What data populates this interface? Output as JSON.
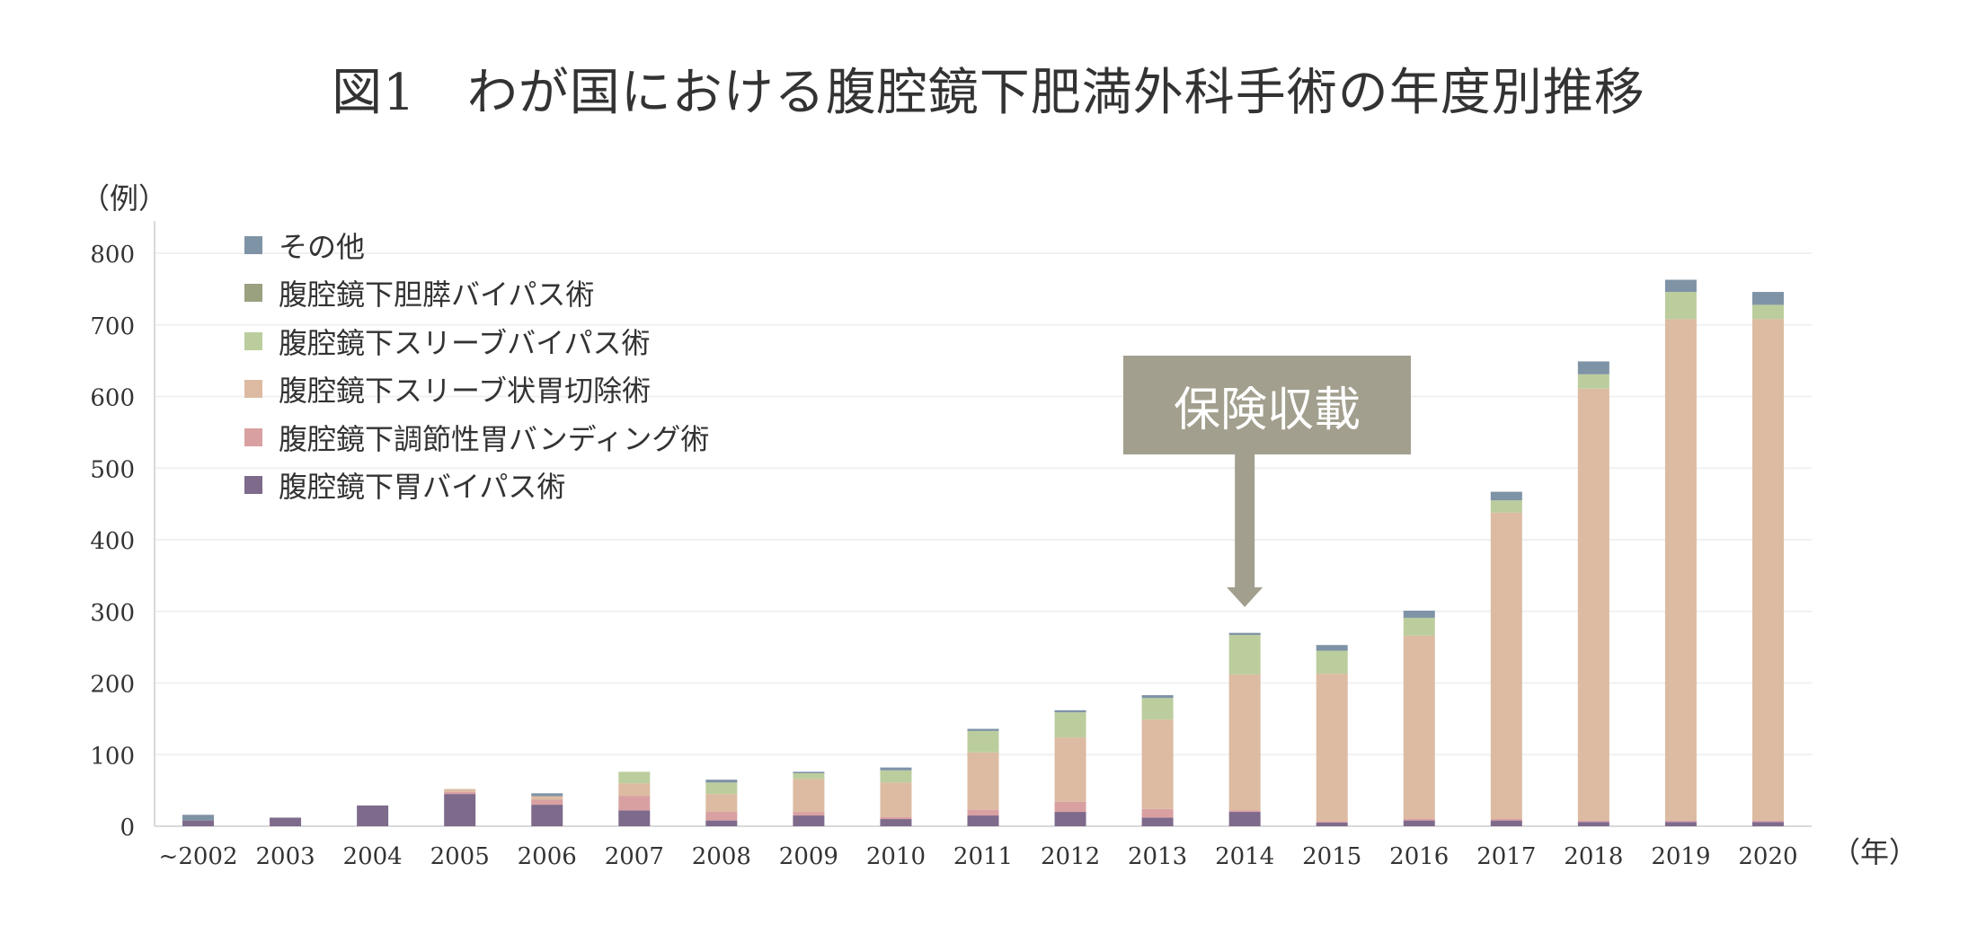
{
  "title": "図1　わが国における腹腔鏡下肥満外科手術の年度別推移",
  "colors": {
    "その他": "#7f93a6",
    "腹腔鏡下胆膵バイパス術": "#99a17f",
    "腹腔鏡下スリーブバイパス術": "#bccd9d",
    "腹腔鏡下スリーブ状胃切除術": "#dcbba2",
    "腹腔鏡下調節性胃バンディング術": "#d9a0a2",
    "腹腔鏡下胃バイパス術": "#7e6a8b",
    "arrow": "#a29f8e",
    "gridline": "#f0f0f0",
    "axis": "#d9d9d9"
  },
  "annotation": {
    "label": "保険収載",
    "target_category": "2014"
  },
  "chart_data": {
    "type": "bar",
    "stacked": true,
    "title": "図1　わが国における腹腔鏡下肥満外科手術の年度別推移",
    "ylabel": "（例）",
    "xlabel": "（年）",
    "ylim": [
      0,
      800
    ],
    "yticks": [
      0,
      100,
      200,
      300,
      400,
      500,
      600,
      700,
      800
    ],
    "grid": true,
    "legend_position": "top-left",
    "categories": [
      "~2002",
      "2003",
      "2004",
      "2005",
      "2006",
      "2007",
      "2008",
      "2009",
      "2010",
      "2011",
      "2012",
      "2013",
      "2014",
      "2015",
      "2016",
      "2017",
      "2018",
      "2019",
      "2020"
    ],
    "legend_order": [
      "その他",
      "腹腔鏡下胆膵バイパス術",
      "腹腔鏡下スリーブバイパス術",
      "腹腔鏡下スリーブ状胃切除術",
      "腹腔鏡下調節性胃バンディング術",
      "腹腔鏡下胃バイパス術"
    ],
    "series": [
      {
        "name": "腹腔鏡下胃バイパス術",
        "values": [
          8,
          12,
          29,
          45,
          30,
          22,
          8,
          15,
          10,
          15,
          20,
          12,
          20,
          5,
          8,
          8,
          6,
          6,
          6
        ]
      },
      {
        "name": "腹腔鏡下調節性胃バンディング術",
        "values": [
          0,
          0,
          0,
          3,
          7,
          20,
          12,
          5,
          3,
          8,
          14,
          12,
          2,
          2,
          2,
          2,
          2,
          2,
          2
        ]
      },
      {
        "name": "腹腔鏡下スリーブ状胃切除術",
        "values": [
          0,
          0,
          0,
          4,
          5,
          18,
          25,
          46,
          48,
          80,
          90,
          125,
          190,
          206,
          256,
          428,
          603,
          700,
          700
        ]
      },
      {
        "name": "腹腔鏡下スリーブバイパス術",
        "values": [
          0,
          0,
          0,
          0,
          0,
          16,
          16,
          8,
          17,
          30,
          35,
          30,
          55,
          32,
          25,
          17,
          20,
          38,
          20
        ]
      },
      {
        "name": "腹腔鏡下胆膵バイパス術",
        "values": [
          0,
          0,
          0,
          0,
          0,
          0,
          0,
          0,
          0,
          0,
          0,
          0,
          0,
          0,
          0,
          0,
          0,
          0,
          0
        ]
      },
      {
        "name": "その他",
        "values": [
          8,
          0,
          0,
          0,
          4,
          0,
          4,
          2,
          4,
          3,
          3,
          4,
          3,
          8,
          10,
          12,
          18,
          17,
          18
        ]
      }
    ]
  }
}
